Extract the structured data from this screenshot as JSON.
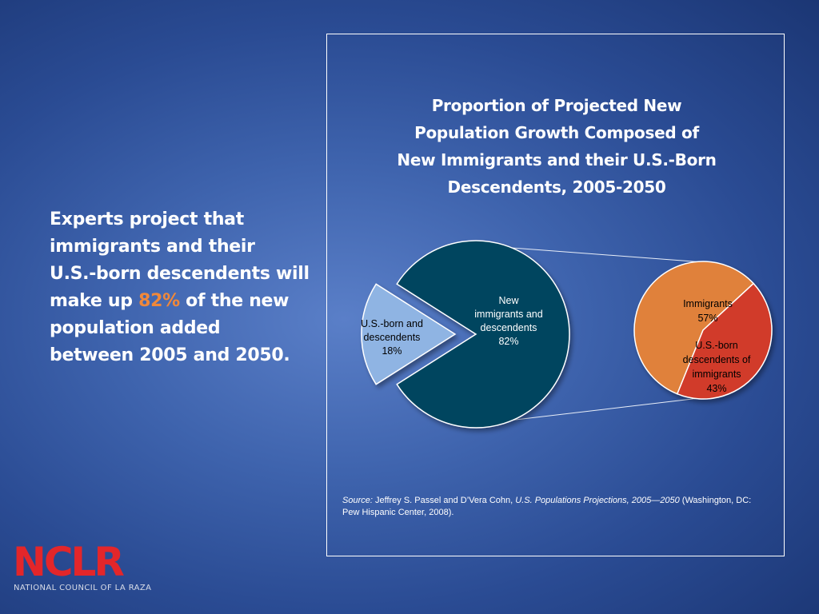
{
  "intro": {
    "line1": "Experts project that",
    "line2": "immigrants and their",
    "line3": "U.S.-born descendents will",
    "line4_pre": "make up ",
    "highlight": "82%",
    "line4_post": " of the new",
    "line5": "population added",
    "line6": "between 2005 and 2050."
  },
  "chart_data": [
    {
      "type": "pie",
      "title": "Proportion of Projected New Population Growth Composed of New Immigrants and their U.S.-Born Descendents, 2005-2050",
      "title_lines": [
        "Proportion of Projected New",
        "Population Growth Composed of",
        "New Immigrants and their U.S.-Born",
        "Descendents, 2005-2050"
      ],
      "slices": [
        {
          "label_lines": [
            "New",
            "immigrants and",
            "descendents",
            "82%"
          ],
          "value": 82,
          "color": "#04445f"
        },
        {
          "label_lines": [
            "U.S.-born and",
            "descendents",
            "18%"
          ],
          "value": 18,
          "color": "#8fb4e3",
          "exploded": true
        }
      ]
    },
    {
      "type": "pie",
      "breakdown_of": "New immigrants and descendents",
      "slices": [
        {
          "label_lines": [
            "Immigrants",
            "57%"
          ],
          "value": 57,
          "color": "#e0813a"
        },
        {
          "label_lines": [
            "U.S.-born",
            "descendents of",
            "immigrants",
            "43%"
          ],
          "value": 43,
          "color": "#d13a2a"
        }
      ]
    }
  ],
  "source": {
    "label": "Source:",
    "authors": " Jeffrey S. Passel and D’Vera Cohn, ",
    "work": "U.S. Populations Projections, 2005—2050",
    "rest": " (Washington, DC:  Pew Hispanic Center, 2008)."
  },
  "logo": {
    "name": "NCLR",
    "subtitle": "NATIONAL COUNCIL OF LA RAZA",
    "color": "#e3262a"
  }
}
